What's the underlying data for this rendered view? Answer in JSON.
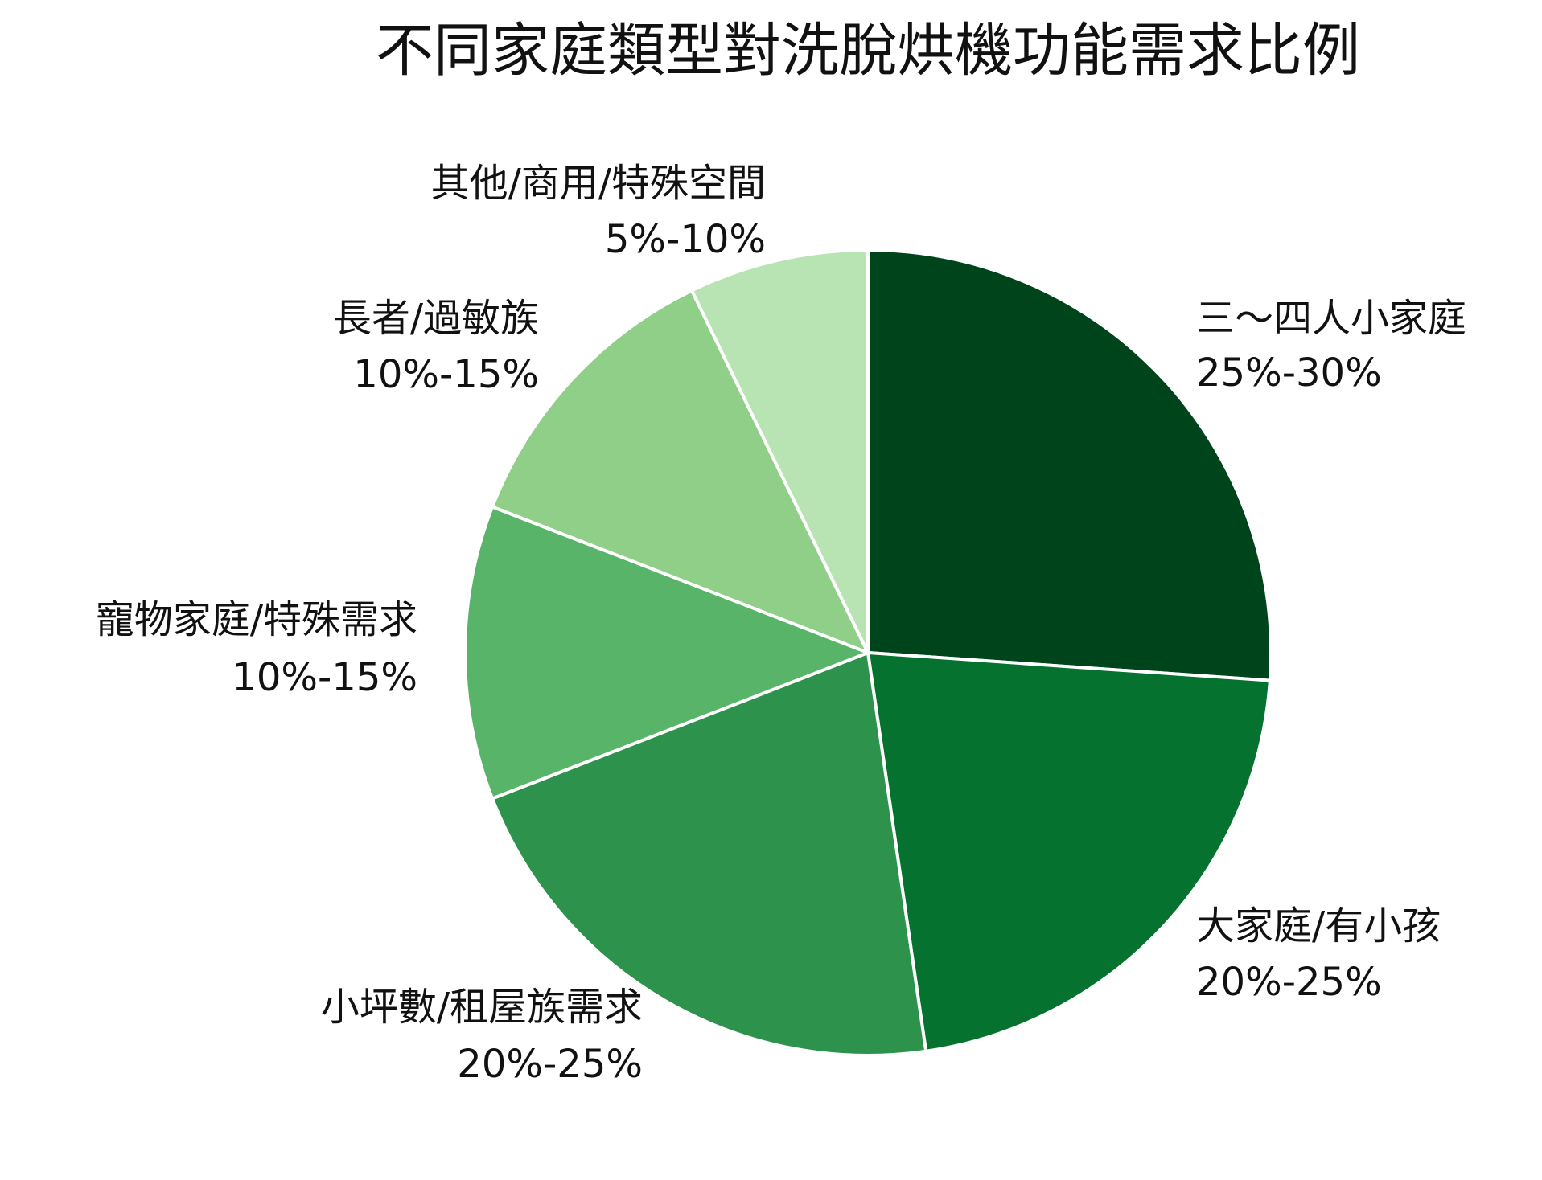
{
  "chart_data": {
    "type": "pie",
    "title": "不同家庭類型對洗脫烘機功能需求比例",
    "categories": [
      "三～四人小家庭",
      "大家庭/有小孩",
      "小坪數/租屋族需求",
      "寵物家庭/特殊需求",
      "長者/過敏族",
      "其他/商用/特殊空間"
    ],
    "values": [
      26.1,
      21.6,
      21.4,
      11.8,
      11.9,
      7.2
    ],
    "ranges": [
      "25%-30%",
      "20%-25%",
      "20%-25%",
      "10%-15%",
      "10%-15%",
      "5%-10%"
    ],
    "colors": [
      "#00441b",
      "#06722f",
      "#2d934c",
      "#57b468",
      "#8fcf88",
      "#b8e3b2"
    ],
    "start_angle": 90,
    "direction": "clockwise"
  }
}
